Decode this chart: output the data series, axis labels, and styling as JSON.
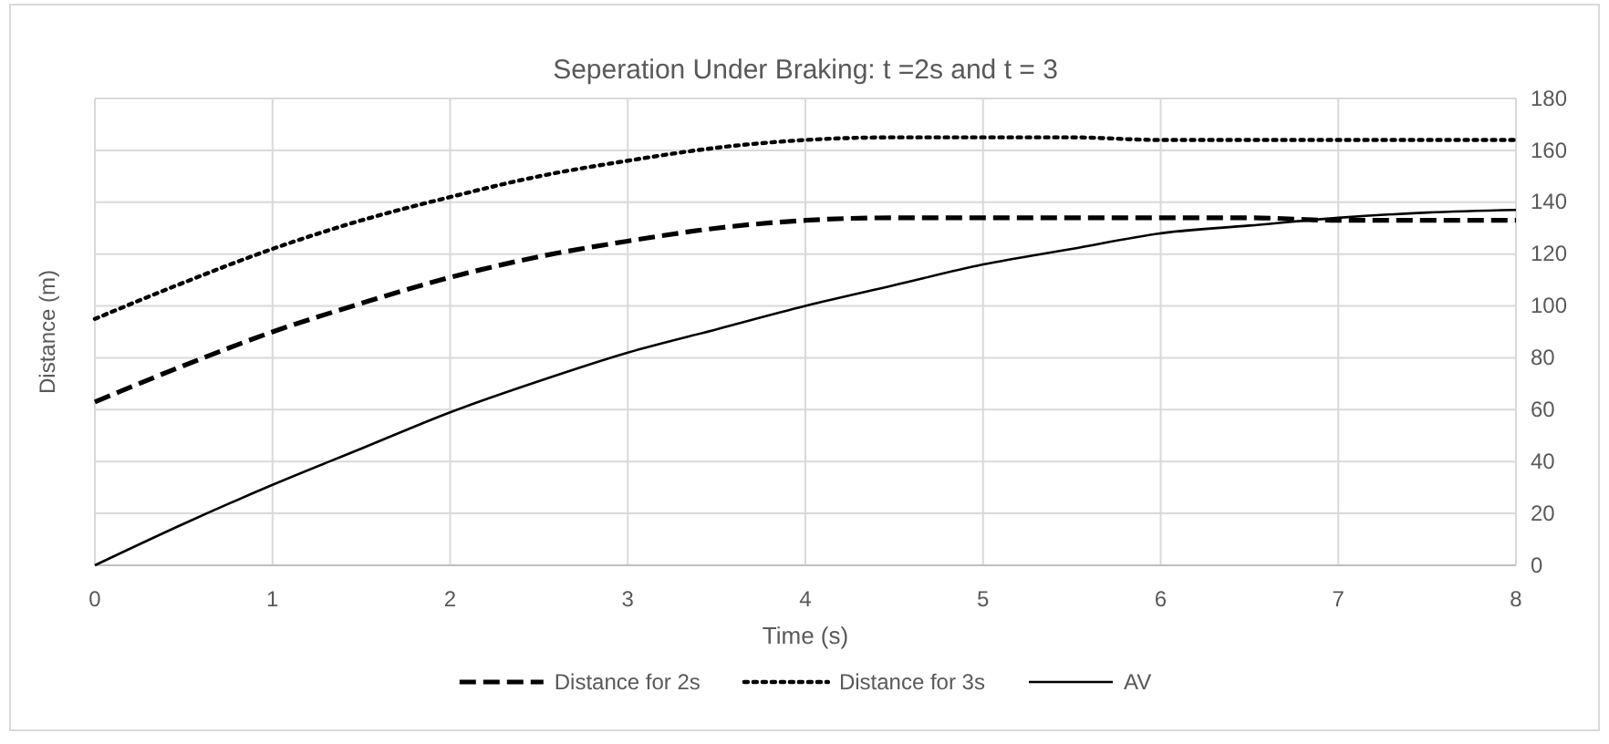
{
  "chart_data": {
    "type": "line",
    "title": "Seperation Under Braking: t =2s and t = 3",
    "xlabel": "Time (s)",
    "ylabel": "Distance (m)",
    "x": [
      0,
      0.5,
      1,
      1.5,
      2,
      2.5,
      3,
      3.5,
      4,
      4.5,
      5,
      5.5,
      6,
      6.5,
      7,
      7.5,
      8
    ],
    "series": [
      {
        "name": "Distance for 2s",
        "color": "#000000",
        "line_style": "dashed",
        "values": [
          63,
          77,
          90,
          101,
          111,
          119,
          125,
          130,
          133,
          134,
          134,
          134,
          134,
          134,
          133,
          133,
          133
        ]
      },
      {
        "name": "Distance for 3s",
        "color": "#000000",
        "line_style": "dotted",
        "values": [
          95,
          109,
          122,
          133,
          142,
          150,
          156,
          161,
          164,
          165,
          165,
          165,
          164,
          164,
          164,
          164,
          164
        ]
      },
      {
        "name": "AV",
        "color": "#000000",
        "line_style": "solid",
        "values": [
          0,
          16,
          31,
          45,
          59,
          71,
          82,
          91,
          100,
          108,
          116,
          122,
          128,
          131,
          134,
          136,
          137
        ]
      }
    ],
    "xlim": [
      0,
      8
    ],
    "xticks": [
      0,
      1,
      2,
      3,
      4,
      5,
      6,
      7,
      8
    ],
    "ylim": [
      0,
      180
    ],
    "yticks": [
      0,
      20,
      40,
      60,
      80,
      100,
      120,
      140,
      160,
      180
    ],
    "grid": true,
    "legend": "bottom",
    "marker": "none"
  }
}
